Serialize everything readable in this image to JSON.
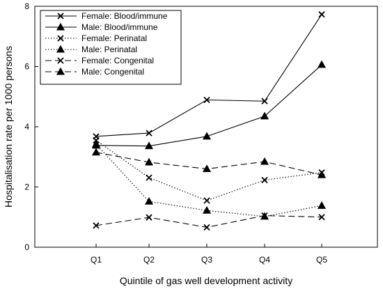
{
  "chart_data": {
    "type": "line",
    "xlabel": "Quintile of gas well development activity",
    "ylabel": "Hospitalisation rate per 1000 persons",
    "categories": [
      "Q1",
      "Q2",
      "Q3",
      "Q4",
      "Q5"
    ],
    "ylim": [
      0,
      8
    ],
    "yticks": [
      0,
      2,
      4,
      6,
      8
    ],
    "legend_position": "top-left",
    "grid": false,
    "series": [
      {
        "name": "Female: Blood/immune",
        "marker": "x",
        "dash": "solid",
        "values": [
          3.68,
          3.79,
          4.89,
          4.85,
          7.73
        ]
      },
      {
        "name": "Male: Blood/immune",
        "marker": "triangle",
        "dash": "solid",
        "values": [
          3.38,
          3.36,
          3.68,
          4.35,
          6.06
        ]
      },
      {
        "name": "Female: Perinatal",
        "marker": "x",
        "dash": "dotted",
        "values": [
          3.55,
          2.31,
          1.55,
          2.23,
          2.48
        ]
      },
      {
        "name": "Male: Perinatal",
        "marker": "triangle",
        "dash": "dotted",
        "values": [
          3.42,
          1.52,
          1.22,
          1.02,
          1.38
        ]
      },
      {
        "name": "Female: Congenital",
        "marker": "x",
        "dash": "dashed",
        "values": [
          0.72,
          0.99,
          0.66,
          1.05,
          1.0
        ]
      },
      {
        "name": "Male: Congenital",
        "marker": "triangle",
        "dash": "dashed",
        "values": [
          3.15,
          2.82,
          2.6,
          2.84,
          2.4
        ]
      }
    ]
  }
}
